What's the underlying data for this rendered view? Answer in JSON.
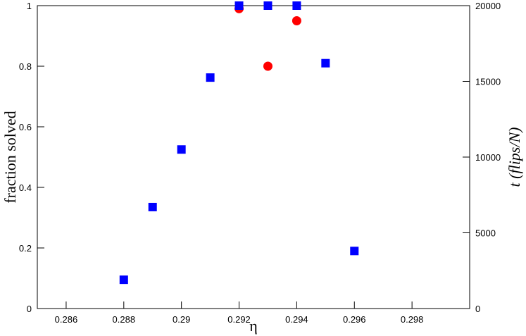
{
  "chart_data": {
    "type": "scatter",
    "xlabel": "η",
    "ylabel": "fraction solved",
    "y2label": "t (flips/N)",
    "xlim": [
      0.285,
      0.3
    ],
    "xticks": [
      0.286,
      0.288,
      0.29,
      0.292,
      0.294,
      0.296,
      0.298
    ],
    "ylim": [
      0,
      1
    ],
    "yticks": [
      0,
      0.2,
      0.4,
      0.6,
      0.8,
      1
    ],
    "y2lim": [
      0,
      20000
    ],
    "y2ticks": [
      0,
      5000,
      10000,
      15000,
      20000
    ],
    "series": [
      {
        "color": "#ff0000",
        "marker": "circle",
        "x": [
          0.292,
          0.293,
          0.294
        ],
        "values": [
          0.99,
          0.8,
          0.95
        ]
      },
      {
        "color": "#0000ff",
        "marker": "square",
        "axis": "y2",
        "x": [
          0.288,
          0.289,
          0.29,
          0.291,
          0.292,
          0.293,
          0.294,
          0.295,
          0.296
        ],
        "values": [
          1900,
          6700,
          10500,
          15250,
          20000,
          20000,
          20000,
          16200,
          3800
        ]
      }
    ]
  }
}
